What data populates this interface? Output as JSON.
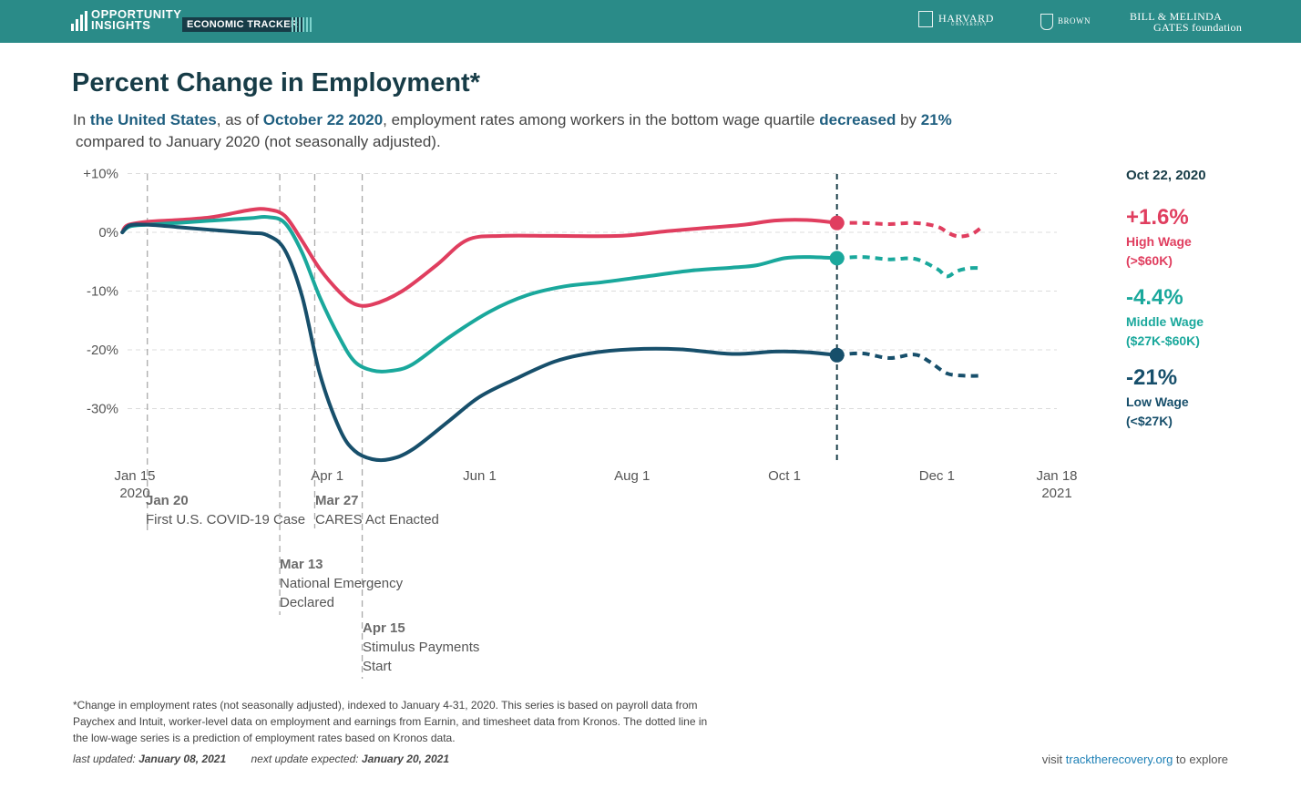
{
  "header": {
    "logo_line1": "OPPORTUNITY",
    "logo_line2": "INSIGHTS",
    "tracker_label": "ECONOMIC TRACKER",
    "partners": {
      "harvard": "HARVARD",
      "harvard_sub": "UNIVERSITY",
      "brown": "BROWN",
      "gates_line1": "BILL & MELINDA",
      "gates_line2": "GATES foundation"
    }
  },
  "title": "Percent Change in Employment*",
  "subtitle": {
    "s1": "In ",
    "location": "the United States",
    "s2": ", as of ",
    "date": "October 22 2020",
    "s3": ", employment rates among workers in the bottom wage quartile ",
    "direction": "decreased",
    "s4": " by ",
    "amount": "21%",
    "line2": "compared to January 2020 (not seasonally adjusted)."
  },
  "chart_data": {
    "type": "line",
    "y_ticks": [
      "+10%",
      "0%",
      "-10%",
      "-20%",
      "-30%"
    ],
    "y_tick_values": [
      10,
      0,
      -10,
      -20,
      -30
    ],
    "ylim": [
      -39,
      10
    ],
    "xlim": [
      "2020-01-15",
      "2021-01-18"
    ],
    "x_ticks": [
      {
        "date": "2020-01-15",
        "label": "Jan 15",
        "label2": "2020"
      },
      {
        "date": "2020-04-01",
        "label": "Apr 1"
      },
      {
        "date": "2020-06-01",
        "label": "Jun 1"
      },
      {
        "date": "2020-08-01",
        "label": "Aug 1"
      },
      {
        "date": "2020-10-01",
        "label": "Oct 1"
      },
      {
        "date": "2020-12-01",
        "label": "Dec 1"
      },
      {
        "date": "2021-01-18",
        "label": "Jan 18",
        "label2": "2021"
      }
    ],
    "current_date": "2020-10-22",
    "current_date_label": "Oct 22, 2020",
    "series": [
      {
        "name": "High Wage",
        "range": "(>$60K)",
        "value_label": "+1.6%",
        "color": "#e03e5f",
        "solid": [
          [
            "2020-01-10",
            0
          ],
          [
            "2020-01-12",
            1.2
          ],
          [
            "2020-01-20",
            1.8
          ],
          [
            "2020-02-01",
            2.1
          ],
          [
            "2020-02-15",
            2.6
          ],
          [
            "2020-03-01",
            3.8
          ],
          [
            "2020-03-08",
            3.9
          ],
          [
            "2020-03-15",
            2.8
          ],
          [
            "2020-03-22",
            -1.5
          ],
          [
            "2020-03-29",
            -6.2
          ],
          [
            "2020-04-06",
            -10.2
          ],
          [
            "2020-04-12",
            -12.2
          ],
          [
            "2020-04-19",
            -12.3
          ],
          [
            "2020-05-01",
            -10.0
          ],
          [
            "2020-05-15",
            -5.5
          ],
          [
            "2020-05-27",
            -1.3
          ],
          [
            "2020-06-10",
            -0.6
          ],
          [
            "2020-07-01",
            -0.6
          ],
          [
            "2020-07-27",
            -0.6
          ],
          [
            "2020-08-15",
            0.2
          ],
          [
            "2020-09-01",
            0.8
          ],
          [
            "2020-09-15",
            1.3
          ],
          [
            "2020-09-27",
            2.0
          ],
          [
            "2020-10-10",
            2.1
          ],
          [
            "2020-10-22",
            1.6
          ]
        ],
        "dotted": [
          [
            "2020-10-22",
            1.6
          ],
          [
            "2020-11-01",
            1.6
          ],
          [
            "2020-11-12",
            1.4
          ],
          [
            "2020-11-22",
            1.6
          ],
          [
            "2020-12-01",
            1.0
          ],
          [
            "2020-12-06",
            -0.2
          ],
          [
            "2020-12-10",
            -0.7
          ],
          [
            "2020-12-15",
            -0.3
          ],
          [
            "2020-12-19",
            0.9
          ]
        ]
      },
      {
        "name": "Middle Wage",
        "range": "($27K-$60K)",
        "value_label": "-4.4%",
        "color": "#1aa89c",
        "solid": [
          [
            "2020-01-10",
            0
          ],
          [
            "2020-01-13",
            1.0
          ],
          [
            "2020-01-20",
            1.3
          ],
          [
            "2020-02-01",
            1.6
          ],
          [
            "2020-02-15",
            2.0
          ],
          [
            "2020-03-01",
            2.4
          ],
          [
            "2020-03-08",
            2.6
          ],
          [
            "2020-03-15",
            1.6
          ],
          [
            "2020-03-22",
            -3.5
          ],
          [
            "2020-03-29",
            -11.0
          ],
          [
            "2020-04-06",
            -18.0
          ],
          [
            "2020-04-12",
            -22.0
          ],
          [
            "2020-04-19",
            -23.5
          ],
          [
            "2020-04-26",
            -23.6
          ],
          [
            "2020-05-05",
            -22.5
          ],
          [
            "2020-05-20",
            -17.8
          ],
          [
            "2020-06-05",
            -13.5
          ],
          [
            "2020-06-20",
            -10.7
          ],
          [
            "2020-07-05",
            -9.2
          ],
          [
            "2020-07-20",
            -8.5
          ],
          [
            "2020-08-05",
            -7.6
          ],
          [
            "2020-08-25",
            -6.5
          ],
          [
            "2020-09-10",
            -6.0
          ],
          [
            "2020-09-20",
            -5.6
          ],
          [
            "2020-10-01",
            -4.4
          ],
          [
            "2020-10-10",
            -4.2
          ],
          [
            "2020-10-22",
            -4.4
          ]
        ],
        "dotted": [
          [
            "2020-10-22",
            -4.4
          ],
          [
            "2020-11-01",
            -4.2
          ],
          [
            "2020-11-12",
            -4.6
          ],
          [
            "2020-11-22",
            -4.5
          ],
          [
            "2020-12-01",
            -6.2
          ],
          [
            "2020-12-05",
            -7.5
          ],
          [
            "2020-12-09",
            -6.6
          ],
          [
            "2020-12-14",
            -6.1
          ],
          [
            "2020-12-19",
            -6.1
          ]
        ]
      },
      {
        "name": "Low Wage",
        "range": "(<$27K)",
        "value_label": "-21%",
        "color": "#174f6b",
        "solid": [
          [
            "2020-01-10",
            0
          ],
          [
            "2020-01-13",
            1.2
          ],
          [
            "2020-01-20",
            1.3
          ],
          [
            "2020-02-01",
            0.9
          ],
          [
            "2020-02-15",
            0.4
          ],
          [
            "2020-03-01",
            -0.1
          ],
          [
            "2020-03-08",
            -0.5
          ],
          [
            "2020-03-15",
            -3.0
          ],
          [
            "2020-03-22",
            -11.0
          ],
          [
            "2020-03-29",
            -24.0
          ],
          [
            "2020-04-06",
            -33.5
          ],
          [
            "2020-04-12",
            -37.2
          ],
          [
            "2020-04-19",
            -38.6
          ],
          [
            "2020-04-26",
            -38.6
          ],
          [
            "2020-05-05",
            -37.0
          ],
          [
            "2020-05-20",
            -32.0
          ],
          [
            "2020-06-01",
            -28.0
          ],
          [
            "2020-06-15",
            -25.0
          ],
          [
            "2020-07-01",
            -22.0
          ],
          [
            "2020-07-15",
            -20.6
          ],
          [
            "2020-08-01",
            -19.9
          ],
          [
            "2020-08-20",
            -19.9
          ],
          [
            "2020-09-10",
            -20.7
          ],
          [
            "2020-09-27",
            -20.3
          ],
          [
            "2020-10-10",
            -20.4
          ],
          [
            "2020-10-22",
            -20.9
          ]
        ],
        "dotted": [
          [
            "2020-10-22",
            -20.9
          ],
          [
            "2020-11-01",
            -20.6
          ],
          [
            "2020-11-12",
            -21.4
          ],
          [
            "2020-11-22",
            -20.8
          ],
          [
            "2020-11-28",
            -22.0
          ],
          [
            "2020-12-05",
            -24.0
          ],
          [
            "2020-12-12",
            -24.4
          ],
          [
            "2020-12-19",
            -24.4
          ]
        ]
      }
    ],
    "events": [
      {
        "date": "2020-01-20",
        "title": "Jan 20",
        "lines": [
          "First U.S. COVID-19 Case"
        ]
      },
      {
        "date": "2020-03-13",
        "title": "Mar 13",
        "lines": [
          "National Emergency",
          "Declared"
        ]
      },
      {
        "date": "2020-03-27",
        "title": "Mar 27",
        "lines": [
          "CARES Act Enacted"
        ]
      },
      {
        "date": "2020-04-15",
        "title": "Apr 15",
        "lines": [
          "Stimulus Payments",
          "Start"
        ]
      }
    ]
  },
  "footer": {
    "footnote": "*Change in employment rates (not seasonally adjusted), indexed to January 4-31, 2020. This series is based on payroll data from Paychex and Intuit, worker-level data on employment and earnings from Earnin, and timesheet data from Kronos. The dotted line in the low-wage series is a prediction of employment rates based on Kronos data.",
    "updated_label": "last updated:",
    "updated_date": "January 08, 2021",
    "next_label": "next update expected:",
    "next_date": "January 20, 2021",
    "visit_pre": "visit ",
    "visit_link": "tracktherecovery.org",
    "visit_post": " to explore"
  }
}
